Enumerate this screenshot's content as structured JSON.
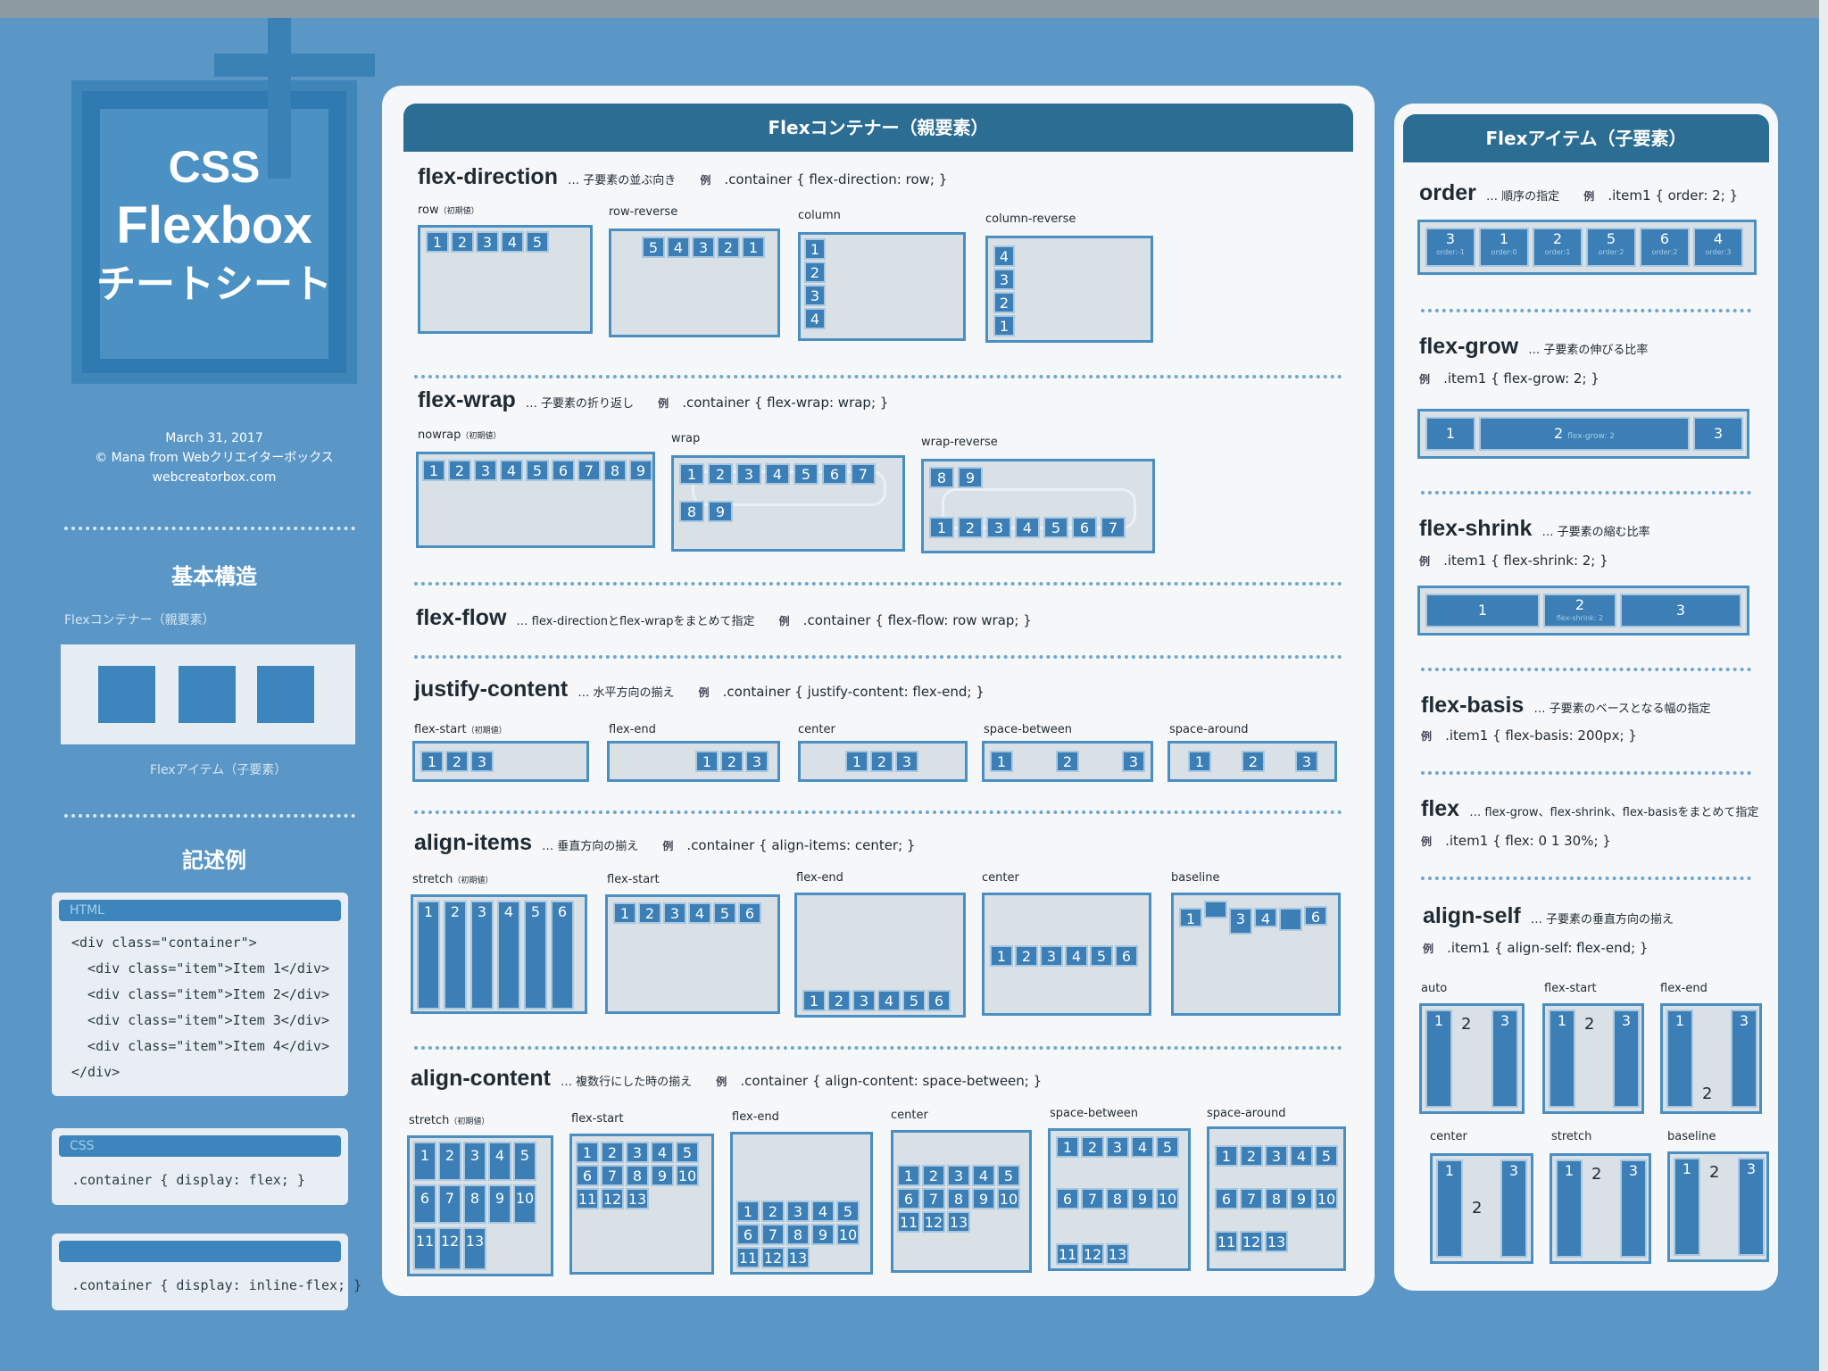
{
  "logo": {
    "line1": "CSS",
    "line2": "Flexbox",
    "line3": "チートシート"
  },
  "meta": {
    "date": "March 31, 2017",
    "author": "© Mana from Webクリエイターボックス",
    "site": "webcreatorbox.com"
  },
  "basic": {
    "heading": "基本構造",
    "container_label": "Flexコンテナー（親要素）",
    "item_label": "Flexアイテム（子要素）"
  },
  "example": {
    "heading": "記述例",
    "html_tag": "HTML",
    "html_lines": [
      "<div class=\"container\">",
      "  <div class=\"item\">Item 1</div>",
      "  <div class=\"item\">Item 2</div>",
      "  <div class=\"item\">Item 3</div>",
      "  <div class=\"item\">Item 4</div>",
      "</div>"
    ],
    "css_tag": "CSS",
    "css_line": ".container { display: flex; }",
    "inline_line": ".container { display: inline-flex; }"
  },
  "container_panel": {
    "title": "Flexコンテナー（親要素）",
    "ex_mark": "例",
    "init_mark": "（初期値）",
    "direction": {
      "name": "flex-direction",
      "desc": "… 子要素の並ぶ向き",
      "code": ".container { flex-direction: row; }",
      "labels": [
        "row",
        "row-reverse",
        "column",
        "column-reverse"
      ]
    },
    "wrap": {
      "name": "flex-wrap",
      "desc": "… 子要素の折り返し",
      "code": ".container { flex-wrap: wrap; }",
      "labels": [
        "nowrap",
        "wrap",
        "wrap-reverse"
      ]
    },
    "flow": {
      "name": "flex-flow",
      "desc": "… flex-directionとflex-wrapをまとめて指定",
      "code": ".container { flex-flow: row wrap; }"
    },
    "justify": {
      "name": "justify-content",
      "desc": "… 水平方向の揃え",
      "code": ".container { justify-content: flex-end; }",
      "labels": [
        "flex-start",
        "flex-end",
        "center",
        "space-between",
        "space-around"
      ]
    },
    "align_items": {
      "name": "align-items",
      "desc": "… 垂直方向の揃え",
      "code": ".container { align-items: center; }",
      "labels": [
        "stretch",
        "flex-start",
        "flex-end",
        "center",
        "baseline"
      ]
    },
    "align_content": {
      "name": "align-content",
      "desc": "… 複数行にした時の揃え",
      "code": ".container { align-content: space-between; }",
      "labels": [
        "stretch",
        "flex-start",
        "flex-end",
        "center",
        "space-between",
        "space-around"
      ]
    }
  },
  "item_panel": {
    "title": "Flexアイテム（子要素）",
    "ex_mark": "例",
    "order": {
      "name": "order",
      "desc": "… 順序の指定",
      "code": ".item1 { order: 2; }",
      "items": [
        {
          "n": "3",
          "s": "order:-1"
        },
        {
          "n": "1",
          "s": "order:0"
        },
        {
          "n": "2",
          "s": "order:1"
        },
        {
          "n": "5",
          "s": "order:2"
        },
        {
          "n": "6",
          "s": "order:2"
        },
        {
          "n": "4",
          "s": "order:3"
        }
      ]
    },
    "grow": {
      "name": "flex-grow",
      "desc": "… 子要素の伸びる比率",
      "code": ".item1 { flex-grow: 2; }",
      "sub": "flex-grow: 2"
    },
    "shrink": {
      "name": "flex-shrink",
      "desc": "… 子要素の縮む比率",
      "code": ".item1 { flex-shrink: 2; }",
      "sub": "flex-shrink: 2"
    },
    "basis": {
      "name": "flex-basis",
      "desc": "… 子要素のベースとなる幅の指定",
      "code": ".item1 { flex-basis: 200px; }"
    },
    "flex": {
      "name": "flex",
      "desc": "… flex-grow、flex-shrink、flex-basisをまとめて指定",
      "code": ".item1 { flex: 0 1 30%; }"
    },
    "align_self": {
      "name": "align-self",
      "desc": "… 子要素の垂直方向の揃え",
      "code": ".item1 { align-self: flex-end; }",
      "labels": [
        "auto",
        "flex-start",
        "flex-end",
        "center",
        "stretch",
        "baseline"
      ]
    }
  }
}
